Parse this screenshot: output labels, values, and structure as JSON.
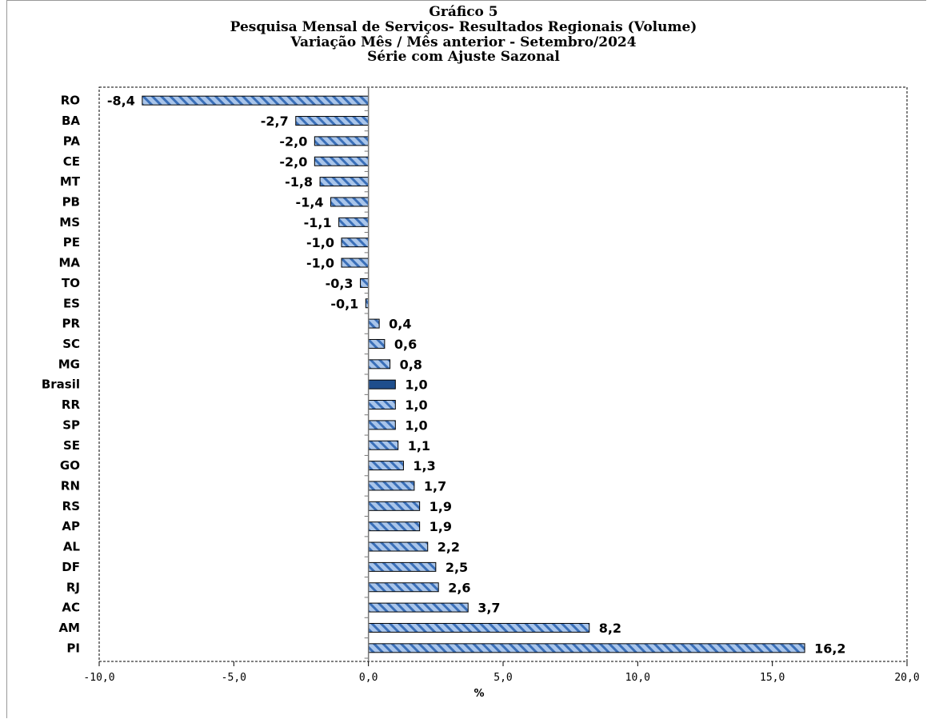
{
  "chart_data": {
    "type": "bar",
    "orientation": "horizontal",
    "title": [
      "Gráfico 5",
      "Pesquisa Mensal de Serviços- Resultados Regionais (Volume)",
      "Variação Mês / Mês anterior - Setembro/2024",
      "Série com Ajuste Sazonal"
    ],
    "xlabel": "%",
    "ylabel": "",
    "xlim": [
      -10,
      20
    ],
    "xticks": [
      -10,
      -5,
      0,
      5,
      10,
      15,
      20
    ],
    "xtick_labels": [
      "-10,0",
      "-5,0",
      "0,0",
      "5,0",
      "10,0",
      "15,0",
      "20,0"
    ],
    "categories": [
      "RO",
      "BA",
      "PA",
      "CE",
      "MT",
      "PB",
      "MS",
      "PE",
      "MA",
      "TO",
      "ES",
      "PR",
      "SC",
      "MG",
      "Brasil",
      "RR",
      "SP",
      "SE",
      "GO",
      "RN",
      "RS",
      "AP",
      "AL",
      "DF",
      "RJ",
      "AC",
      "AM",
      "PI"
    ],
    "values": [
      -8.4,
      -2.7,
      -2.0,
      -2.0,
      -1.8,
      -1.4,
      -1.1,
      -1.0,
      -1.0,
      -0.3,
      -0.1,
      0.4,
      0.6,
      0.8,
      1.0,
      1.0,
      1.0,
      1.1,
      1.3,
      1.7,
      1.9,
      1.9,
      2.2,
      2.5,
      2.6,
      3.7,
      8.2,
      16.2
    ],
    "value_labels": [
      "-8,4",
      "-2,7",
      "-2,0",
      "-2,0",
      "-1,8",
      "-1,4",
      "-1,1",
      "-1,0",
      "-1,0",
      "-0,3",
      "-0,1",
      "0,4",
      "0,6",
      "0,8",
      "1,0",
      "1,0",
      "1,0",
      "1,1",
      "1,3",
      "1,7",
      "1,9",
      "1,9",
      "2,2",
      "2,5",
      "2,6",
      "3,7",
      "8,2",
      "16,2"
    ],
    "highlight_category": "Brasil",
    "colors": {
      "bar_fill": "#a9c5ea",
      "bar_hatch": "#3a6fb8",
      "highlight_fill": "#1f4e8c",
      "bar_stroke": "#000000"
    },
    "grid": false,
    "legend": "none"
  }
}
